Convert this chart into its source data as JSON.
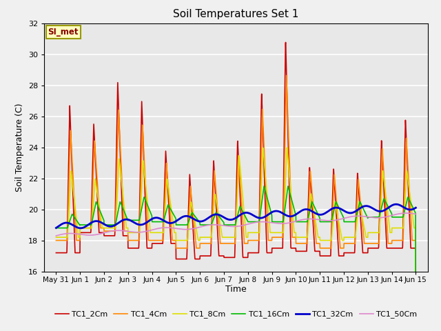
{
  "title": "Soil Temperatures Set 1",
  "xlabel": "Time",
  "ylabel": "Soil Temperature (C)",
  "ylim": [
    16,
    32
  ],
  "background_color": "#e8e8e8",
  "figure_bg": "#f0f0f0",
  "grid_color": "#ffffff",
  "annotation_text": "SI_met",
  "annotation_bg": "#ffffc0",
  "annotation_border": "#999900",
  "xtick_labels": [
    "May 31",
    "Jun 1",
    "Jun 2",
    "Jun 3",
    "Jun 4",
    "Jun 5",
    "Jun 6",
    "Jun 7",
    "Jun 8",
    "Jun 9",
    "Jun 10",
    "Jun 11",
    "Jun 12",
    "Jun 13",
    "Jun 14",
    "Jun 15"
  ],
  "series": {
    "TC1_2Cm": {
      "color": "#cc0000",
      "lw": 1.2
    },
    "TC1_4Cm": {
      "color": "#ff8800",
      "lw": 1.2
    },
    "TC1_8Cm": {
      "color": "#dddd00",
      "lw": 1.2
    },
    "TC1_16Cm": {
      "color": "#00bb00",
      "lw": 1.2
    },
    "TC1_32Cm": {
      "color": "#0000cc",
      "lw": 2.0
    },
    "TC1_50Cm": {
      "color": "#dd88cc",
      "lw": 1.2
    }
  }
}
